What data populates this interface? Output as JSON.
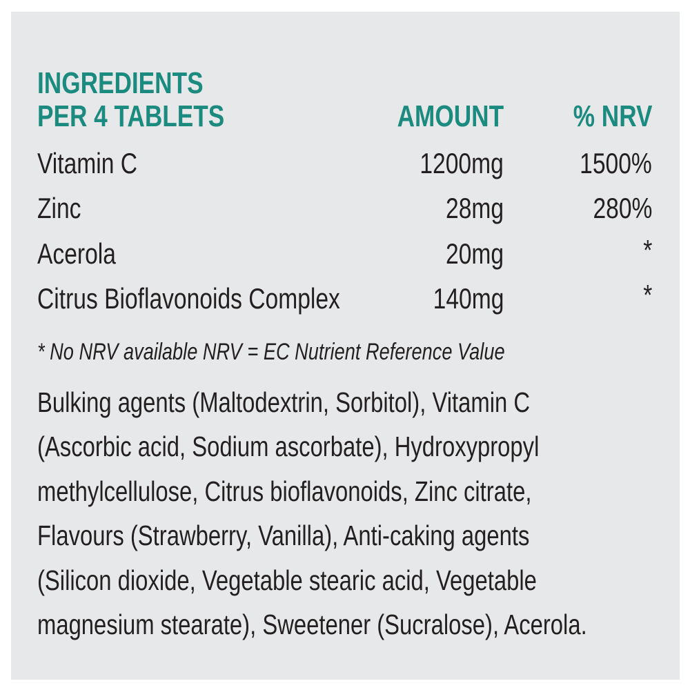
{
  "header": {
    "title_line1": "INGREDIENTS",
    "title_line2": "PER 4 TABLETS",
    "amount": "AMOUNT",
    "nrv": "% NRV"
  },
  "rows": [
    {
      "name": "Vitamin C",
      "amount": "1200mg",
      "nrv": "1500%"
    },
    {
      "name": "Zinc",
      "amount": "28mg",
      "nrv": "280%"
    },
    {
      "name": "Acerola",
      "amount": "20mg",
      "nrv": "*"
    },
    {
      "name": "Citrus Bioflavonoids Complex",
      "amount": "140mg",
      "nrv": "*"
    }
  ],
  "footnote": "* No NRV available  NRV = EC Nutrient Reference Value",
  "ingredients_lines": [
    "Bulking agents (Maltodextrin, Sorbitol), Vitamin C",
    "(Ascorbic acid, Sodium ascorbate), Hydroxypropyl",
    "methylcellulose, Citrus bioflavonoids, Zinc citrate,",
    "Flavours (Strawberry, Vanilla), Anti-caking agents",
    "(Silicon dioxide, Vegetable stearic acid, Vegetable",
    "magnesium stearate), Sweetener (Sucralose), Acerola."
  ],
  "colors": {
    "accent": "#1b8a7f",
    "panel": "#e7e8e9",
    "text": "#231f20"
  }
}
